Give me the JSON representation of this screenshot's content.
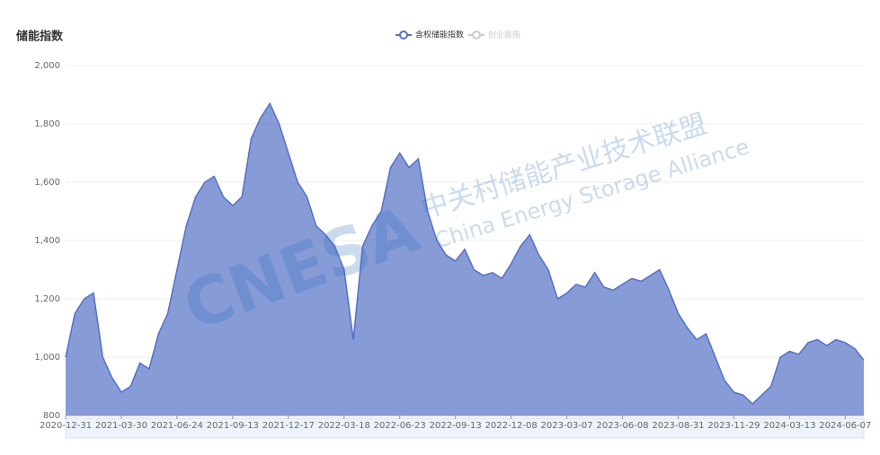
{
  "chart_data": {
    "type": "area",
    "title": "储能指数",
    "categories": [
      "2020-12-31",
      null,
      null,
      null,
      null,
      null,
      "2021-03-30",
      null,
      null,
      null,
      null,
      null,
      "2021-06-24",
      null,
      null,
      null,
      null,
      null,
      "2021-09-13",
      null,
      null,
      null,
      null,
      null,
      "2021-12-17",
      null,
      null,
      null,
      null,
      null,
      "2022-03-18",
      null,
      null,
      null,
      null,
      null,
      "2022-06-23",
      null,
      null,
      null,
      null,
      null,
      "2022-09-13",
      null,
      null,
      null,
      null,
      null,
      "2022-12-08",
      null,
      null,
      null,
      null,
      null,
      "2023-03-07",
      null,
      null,
      null,
      null,
      null,
      "2023-06-08",
      null,
      null,
      null,
      null,
      null,
      "2023-08-31",
      null,
      null,
      null,
      null,
      null,
      "2023-11-29",
      null,
      null,
      null,
      null,
      null,
      "2024-03-13",
      null,
      null,
      null,
      null,
      null,
      "2024-06-07",
      null,
      null
    ],
    "series": [
      {
        "name": "含权储能指数",
        "color": "#5470c6",
        "values": [
          1000,
          1150,
          1200,
          1220,
          1000,
          930,
          880,
          900,
          980,
          960,
          1080,
          1150,
          1300,
          1450,
          1550,
          1600,
          1620,
          1550,
          1520,
          1550,
          1750,
          1820,
          1870,
          1800,
          1700,
          1600,
          1550,
          1450,
          1420,
          1380,
          1300,
          1060,
          1380,
          1450,
          1500,
          1650,
          1700,
          1650,
          1680,
          1500,
          1400,
          1350,
          1330,
          1370,
          1300,
          1280,
          1290,
          1270,
          1320,
          1380,
          1420,
          1350,
          1300,
          1200,
          1220,
          1250,
          1240,
          1290,
          1240,
          1230,
          1250,
          1270,
          1260,
          1280,
          1300,
          1230,
          1150,
          1100,
          1060,
          1080,
          1000,
          920,
          880,
          870,
          840,
          870,
          900,
          1000,
          1020,
          1010,
          1050,
          1060,
          1040,
          1060,
          1050,
          1030,
          990
        ]
      }
    ],
    "legend_inactive": {
      "name": "创业板指",
      "color": "#cccccc"
    },
    "ylim": [
      800,
      2000
    ],
    "yticks": [
      800,
      {
        "value": 1000,
        "label": "1,000"
      },
      {
        "value": 1200,
        "label": "1,200"
      },
      {
        "value": 1400,
        "label": "1,400"
      },
      {
        "value": 1600,
        "label": "1,600"
      },
      {
        "value": 1800,
        "label": "1,800"
      },
      {
        "value": 2000,
        "label": "2,000"
      }
    ],
    "grid": true,
    "watermark": {
      "logo": "CNESA",
      "name_cn": "中关村储能产业技术联盟",
      "name_en": "China Energy Storage Alliance"
    }
  }
}
